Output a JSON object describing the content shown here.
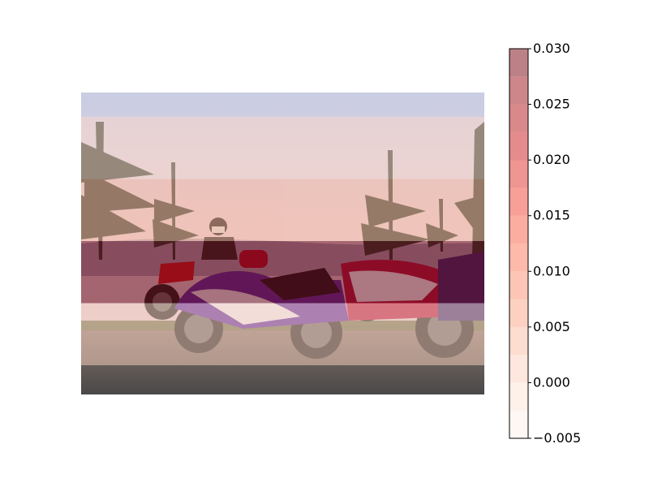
{
  "chart_data": {
    "type": "heatmap",
    "title": "",
    "xlabel": "",
    "ylabel": "",
    "background_photo": "motorcycles parked on gravel with rider and pine trees at dusk",
    "colormap": "Reds",
    "colormap_colors": [
      "#fff5f0",
      "#fee0d2",
      "#fcbba1",
      "#fc9272",
      "#fb6a4a",
      "#ef3b2c",
      "#cb181d",
      "#a50f15",
      "#67000d"
    ],
    "overlay_alpha": 0.5,
    "grid": {
      "rows": 4,
      "cols": 2,
      "values": [
        [
          0.0003,
          0.0003
        ],
        [
          0.0042,
          0.004
        ],
        [
          0.03,
          0.03
        ],
        [
          0.0008,
          0.0008
        ]
      ]
    },
    "colorbar": {
      "vmin": -0.005,
      "vmax": 0.03,
      "levels": [
        -0.005,
        -0.0025,
        0.0,
        0.0025,
        0.005,
        0.0075,
        0.01,
        0.0125,
        0.015,
        0.0175,
        0.02,
        0.0225,
        0.025,
        0.0275,
        0.03
      ],
      "ticks": [
        -0.005,
        0.0,
        0.005,
        0.01,
        0.015,
        0.02,
        0.025,
        0.03
      ],
      "tick_labels": [
        "−0.005",
        "0.000",
        "0.005",
        "0.010",
        "0.015",
        "0.020",
        "0.025",
        "0.030"
      ]
    }
  }
}
